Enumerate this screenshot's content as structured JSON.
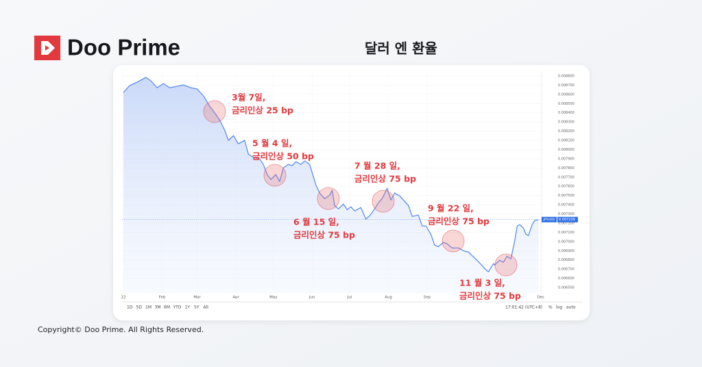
{
  "header": {
    "brand": "Doo Prime",
    "title": "달러 엔 환율"
  },
  "chart_data": {
    "type": "line",
    "x": [
      0,
      5,
      11,
      18,
      22,
      27,
      32,
      37,
      43,
      48,
      54,
      59,
      64,
      69,
      72,
      77,
      81,
      84,
      88,
      92,
      97,
      100,
      104,
      109,
      112,
      115,
      118,
      122,
      125,
      128,
      132,
      135,
      138,
      142,
      145,
      149,
      154,
      157,
      161,
      165,
      167,
      169,
      172,
      176,
      179,
      182,
      185,
      190,
      194,
      197,
      201,
      204,
      207,
      211,
      214,
      217,
      221,
      224,
      228,
      231,
      236,
      239,
      242,
      246,
      249,
      252,
      256,
      259,
      263,
      268,
      272,
      276,
      280,
      284,
      289,
      292,
      296,
      297,
      301,
      304,
      307,
      310,
      313,
      315,
      317,
      320,
      322,
      324,
      327,
      329,
      332
    ],
    "series": [
      {
        "name": "JPYUSD",
        "color": "#5b8def",
        "values": [
          0.008621,
          0.008696,
          0.008733,
          0.008785,
          0.008748,
          0.008673,
          0.008718,
          0.008673,
          0.008688,
          0.008703,
          0.008673,
          0.008659,
          0.008584,
          0.008472,
          0.00842,
          0.008323,
          0.008212,
          0.0081,
          0.008152,
          0.008063,
          0.0081,
          0.007951,
          0.007914,
          0.007899,
          0.007839,
          0.007728,
          0.007676,
          0.007728,
          0.007653,
          0.007802,
          0.007839,
          0.007825,
          0.007869,
          0.007839,
          0.007877,
          0.007839,
          0.007616,
          0.007527,
          0.007467,
          0.007504,
          0.007557,
          0.007393,
          0.007355,
          0.007408,
          0.007348,
          0.007378,
          0.007333,
          0.00737,
          0.007244,
          0.007281,
          0.007355,
          0.007422,
          0.007467,
          0.007579,
          0.007452,
          0.007527,
          0.007497,
          0.007452,
          0.007393,
          0.007274,
          0.007288,
          0.007169,
          0.007169,
          0.00708,
          0.006961,
          0.006946,
          0.006991,
          0.006976,
          0.006931,
          0.006931,
          0.006901,
          0.006886,
          0.006834,
          0.006782,
          0.006708,
          0.00667,
          0.00676,
          0.006745,
          0.006797,
          0.006775,
          0.006842,
          0.006812,
          0.007005,
          0.007169,
          0.007184,
          0.007147,
          0.00708,
          0.007065,
          0.007184,
          0.007229,
          0.007239
        ]
      }
    ],
    "last_price": 0.007239,
    "xlim": [
      0,
      334
    ],
    "xticks": [
      {
        "value": 0,
        "label": "22"
      },
      {
        "value": 31,
        "label": "Feb"
      },
      {
        "value": 59,
        "label": "Mar"
      },
      {
        "value": 90,
        "label": "Apr"
      },
      {
        "value": 120,
        "label": "May"
      },
      {
        "value": 151,
        "label": "Jun"
      },
      {
        "value": 181,
        "label": "Jul"
      },
      {
        "value": 212,
        "label": "Aug"
      },
      {
        "value": 243,
        "label": "Sep"
      },
      {
        "value": 334,
        "label": "Dec"
      }
    ],
    "ylim": [
      0.0065,
      0.0088
    ],
    "yticks": [
      {
        "value": 0.0065,
        "label": "0.006500"
      },
      {
        "value": 0.0066,
        "label": "0.006600"
      },
      {
        "value": 0.0067,
        "label": "0.006700"
      },
      {
        "value": 0.0068,
        "label": "0.006800"
      },
      {
        "value": 0.0069,
        "label": "0.006900"
      },
      {
        "value": 0.007,
        "label": "0.007000"
      },
      {
        "value": 0.0071,
        "label": "0.007100"
      },
      {
        "value": 0.0072,
        "label": "0.007200"
      },
      {
        "value": 0.0073,
        "label": "0.007300"
      },
      {
        "value": 0.0074,
        "label": "0.007400"
      },
      {
        "value": 0.0075,
        "label": "0.007500"
      },
      {
        "value": 0.0076,
        "label": "0.007600"
      },
      {
        "value": 0.0077,
        "label": "0.007700"
      },
      {
        "value": 0.0078,
        "label": "0.007800"
      },
      {
        "value": 0.0079,
        "label": "0.007900"
      },
      {
        "value": 0.008,
        "label": "0.008000"
      },
      {
        "value": 0.0081,
        "label": "0.008100"
      },
      {
        "value": 0.0082,
        "label": "0.008200"
      },
      {
        "value": 0.0083,
        "label": "0.008300"
      },
      {
        "value": 0.0084,
        "label": "0.008400"
      },
      {
        "value": 0.0085,
        "label": "0.008500"
      },
      {
        "value": 0.0086,
        "label": "0.008600"
      },
      {
        "value": 0.0087,
        "label": "0.008700"
      },
      {
        "value": 0.0088,
        "label": "0.008800"
      }
    ],
    "grid": true,
    "annotations": [
      {
        "date": "3월 7일,",
        "text": "금리인상 25 bp"
      },
      {
        "date": "5 월 4 일,",
        "text": "금리인상 50 bp"
      },
      {
        "date": "6 월 15 일,",
        "text": "금리인상 75 bp"
      },
      {
        "date": "7 월 28 일,",
        "text": "금리인상 75 bp"
      },
      {
        "date": "9 월 22 일,",
        "text": "금리인상 75 bp"
      },
      {
        "date": "11 월 3 일,",
        "text": "금리인상 75 bp"
      }
    ]
  },
  "toolbar": {
    "ranges": [
      "1D",
      "5D",
      "1M",
      "3M",
      "6M",
      "YTD",
      "1Y",
      "5Y",
      "All"
    ],
    "time": "17:01:42 (UTC+8)",
    "options": [
      "%",
      "log",
      "auto"
    ]
  },
  "footer": {
    "copyright": "Copyright© Doo Prime. All Rights Reserved."
  }
}
